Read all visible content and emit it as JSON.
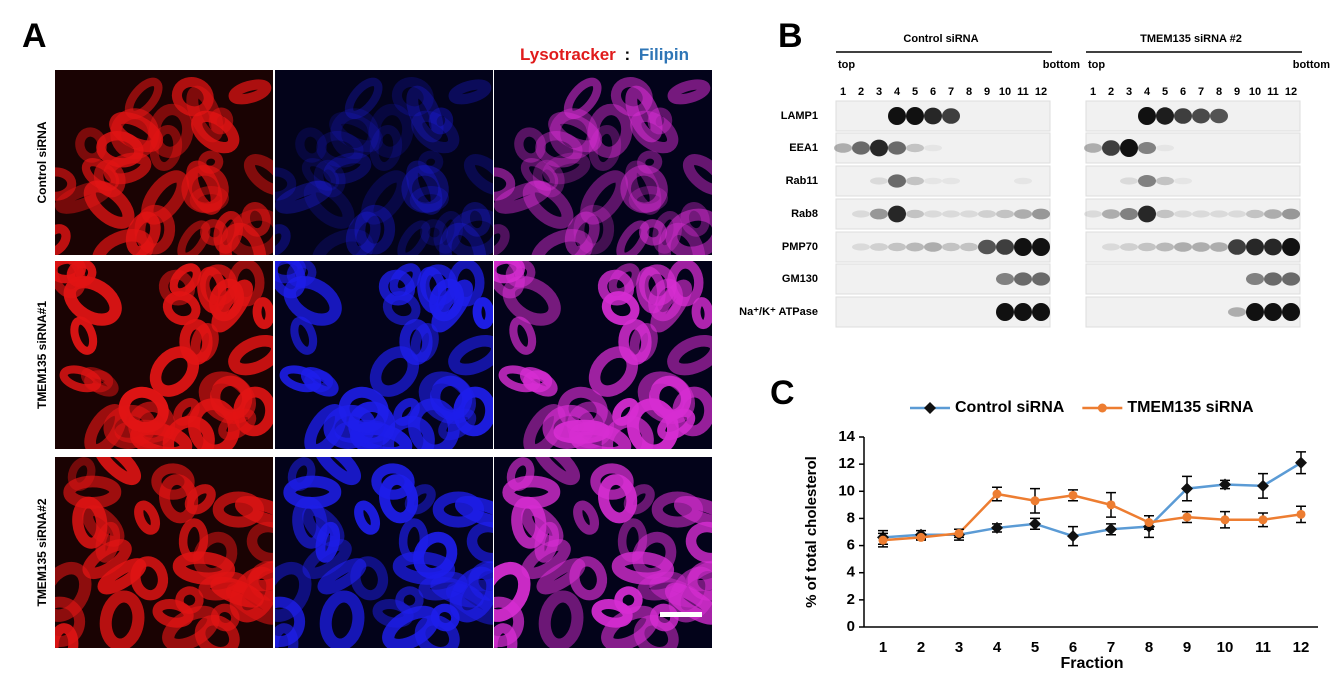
{
  "panel_a": {
    "label": "A",
    "title_lysotracker": "Lysotracker",
    "title_sep": ":",
    "title_filipin": "Filipin",
    "rows": [
      "Control siRNA",
      "TMEM135 siRNA#1",
      "TMEM135 siRNA#2"
    ]
  },
  "panel_b": {
    "label": "B",
    "groups": [
      {
        "title": "Control siRNA",
        "top": "top",
        "bottom": "bottom"
      },
      {
        "title": "TMEM135  siRNA #2",
        "top": "top",
        "bottom": "bottom"
      }
    ],
    "lanes": [
      "1",
      "2",
      "3",
      "4",
      "5",
      "6",
      "7",
      "8",
      "9",
      "10",
      "11",
      "12"
    ],
    "markers": [
      "LAMP1",
      "EEA1",
      "Rab11",
      "Rab8",
      "PMP70",
      "GM130",
      "Na⁺/K⁺ ATPase"
    ]
  },
  "panel_c": {
    "label": "C"
  },
  "chart_data": {
    "type": "line",
    "categories": [
      "1",
      "2",
      "3",
      "4",
      "5",
      "6",
      "7",
      "8",
      "9",
      "10",
      "11",
      "12"
    ],
    "series": [
      {
        "name": "Control siRNA",
        "color": "#5b9bd5",
        "marker": "diamond",
        "values": [
          6.6,
          6.8,
          6.8,
          7.3,
          7.6,
          6.7,
          7.2,
          7.4,
          10.2,
          10.5,
          10.4,
          12.1
        ],
        "errors": [
          0.5,
          0.3,
          0.4,
          0.3,
          0.4,
          0.7,
          0.4,
          0.8,
          0.9,
          0.3,
          0.9,
          0.8
        ]
      },
      {
        "name": "TMEM135 siRNA",
        "color": "#ed7d31",
        "marker": "circle",
        "values": [
          6.4,
          6.6,
          6.9,
          9.8,
          9.3,
          9.7,
          9.0,
          7.7,
          8.1,
          7.9,
          7.9,
          8.3
        ],
        "errors": [
          0.5,
          0.2,
          0.3,
          0.5,
          0.9,
          0.4,
          0.9,
          0.5,
          0.4,
          0.6,
          0.5,
          0.6
        ]
      }
    ],
    "ylim": [
      0,
      14
    ],
    "yticks": [
      0,
      2,
      4,
      6,
      8,
      10,
      12,
      14
    ],
    "x_label": "Fraction",
    "y_label": "% of total cholesterol",
    "legend": "top"
  }
}
